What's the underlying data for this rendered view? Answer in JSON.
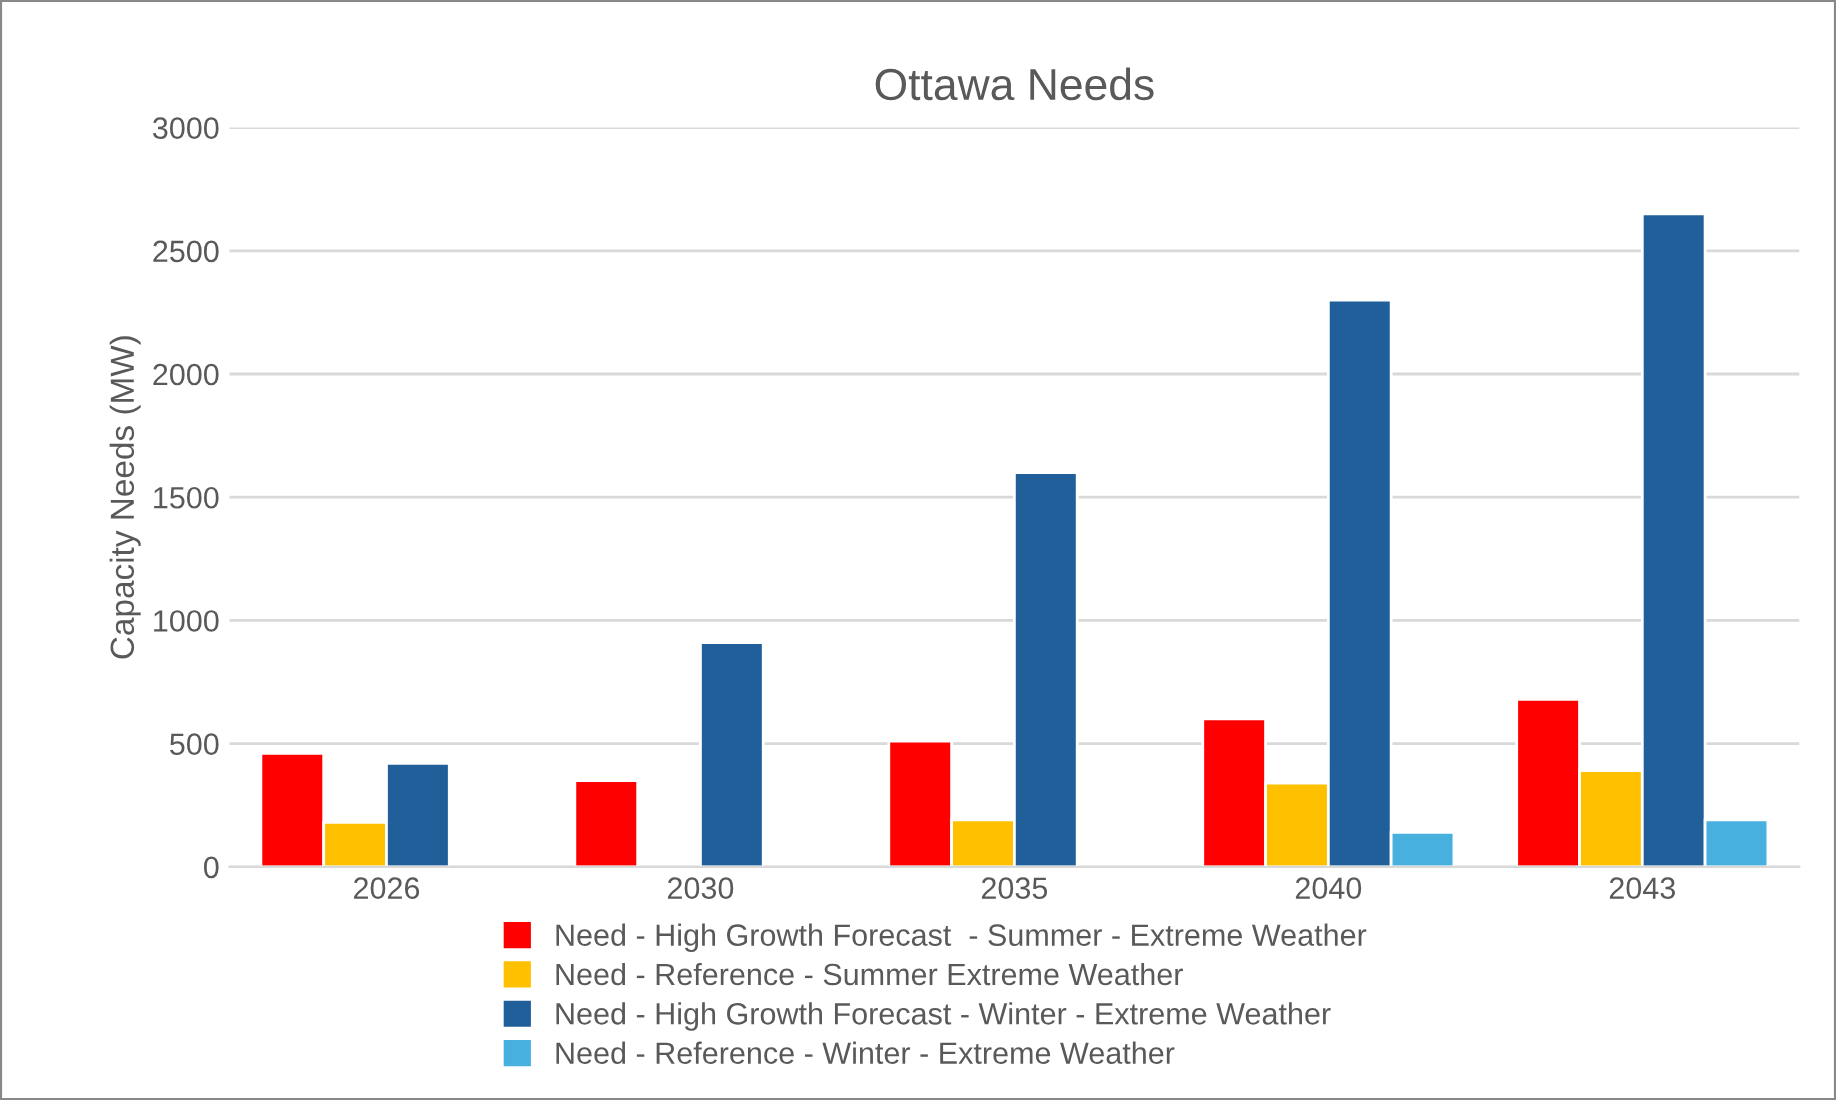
{
  "chart_data": {
    "type": "bar",
    "title": "Ottawa Needs",
    "ylabel": "Capacity Needs (MW)",
    "categories": [
      "2026",
      "2030",
      "2035",
      "2040",
      "2043"
    ],
    "series": [
      {
        "name": "Need - High Growth Forecast  - Summer - Extreme Weather",
        "color": "#ff0000",
        "values": [
          460,
          350,
          510,
          600,
          680
        ]
      },
      {
        "name": "Need - Reference - Summer Extreme Weather",
        "color": "#ffc000",
        "values": [
          180,
          null,
          190,
          340,
          390
        ]
      },
      {
        "name": "Need - High Growth Forecast - Winter - Extreme Weather",
        "color": "#215f9a",
        "values": [
          420,
          910,
          1600,
          2300,
          2650
        ]
      },
      {
        "name": "Need - Reference - Winter - Extreme Weather",
        "color": "#47b0df",
        "values": [
          null,
          null,
          null,
          140,
          190
        ]
      }
    ],
    "ylim": [
      0,
      3000
    ],
    "yticks": [
      0,
      500,
      1000,
      1500,
      2000,
      2500,
      3000
    ],
    "grid": "y",
    "legend": "bottom"
  }
}
